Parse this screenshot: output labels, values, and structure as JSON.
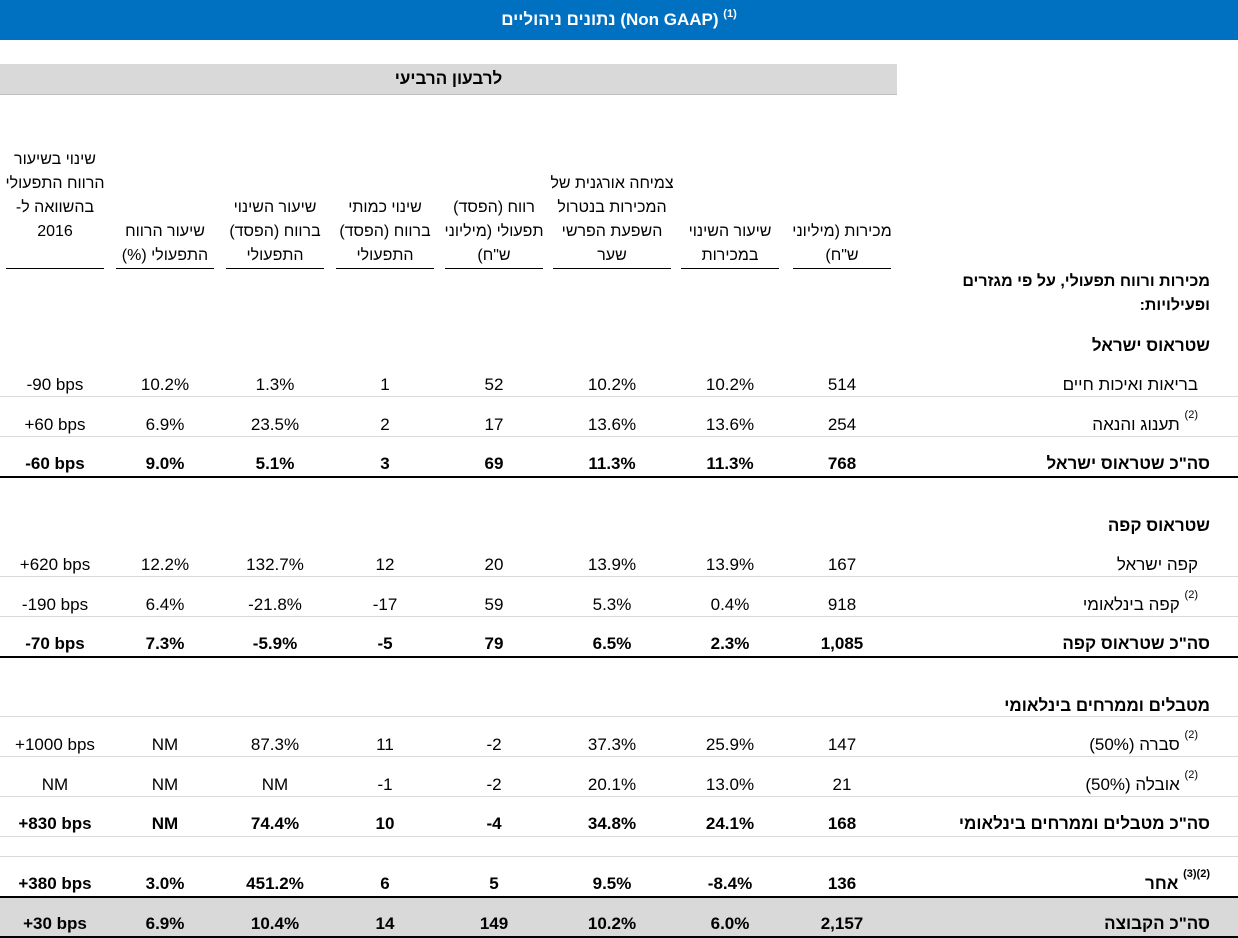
{
  "title": {
    "text": "נתונים ניהוליים (Non GAAP)",
    "footnote": "(1)"
  },
  "period": "לרבעון הרביעי",
  "section_intro": "מכירות ורווח תפעולי, על פי מגזרים ופעילויות:",
  "columns": [
    "מכירות (מיליוני ש\"ח)",
    "שיעור השינוי במכירות",
    "צמיחה אורגנית של המכירות בנטרול השפעת הפרשי שער",
    "רווח (הפסד) תפעולי (מיליוני ש\"ח)",
    "שינוי כמותי ברווח (הפסד) התפעולי",
    "שיעור השינוי ברווח (הפסד) התפעולי",
    "שיעור הרווח התפעולי (%)",
    "שינוי בשיעור הרווח התפעולי בהשוואה ל- 2016"
  ],
  "sections": [
    {
      "heading": "שטראוס ישראל"
    },
    {
      "heading": "שטראוס קפה"
    },
    {
      "heading": "מטבלים וממרחים בינלאומי"
    }
  ],
  "rows": [
    {
      "label": "בריאות ואיכות חיים",
      "fn": "",
      "values": [
        "514",
        "10.2%",
        "10.2%",
        "52",
        "1",
        "1.3%",
        "10.2%",
        "-90 bps"
      ]
    },
    {
      "label": "תענוג והנאה",
      "fn": "(2)",
      "values": [
        "254",
        "13.6%",
        "13.6%",
        "17",
        "2",
        "23.5%",
        "6.9%",
        "+60 bps"
      ]
    },
    {
      "label": "סה\"כ שטראוס ישראל",
      "fn": "",
      "values": [
        "768",
        "11.3%",
        "11.3%",
        "69",
        "3",
        "5.1%",
        "9.0%",
        "-60 bps"
      ]
    },
    {
      "label": "קפה ישראל",
      "fn": "",
      "values": [
        "167",
        "13.9%",
        "13.9%",
        "20",
        "12",
        "132.7%",
        "12.2%",
        "+620 bps"
      ]
    },
    {
      "label": "קפה בינלאומי",
      "fn": "(2)",
      "values": [
        "918",
        "0.4%",
        "5.3%",
        "59",
        "-17",
        "-21.8%",
        "6.4%",
        "-190 bps"
      ]
    },
    {
      "label": "סה\"כ שטראוס קפה",
      "fn": "",
      "values": [
        "1,085",
        "2.3%",
        "6.5%",
        "79",
        "-5",
        "-5.9%",
        "7.3%",
        "-70 bps"
      ]
    },
    {
      "label": "סברה (50%)",
      "fn": "(2)",
      "values": [
        "147",
        "25.9%",
        "37.3%",
        "-2",
        "11",
        "87.3%",
        "NM",
        "+1000 bps"
      ]
    },
    {
      "label": "אובלה (50%)",
      "fn": "(2)",
      "values": [
        "21",
        "13.0%",
        "20.1%",
        "-2",
        "-1",
        "NM",
        "NM",
        "NM"
      ]
    },
    {
      "label": "סה\"כ מטבלים וממרחים בינלאומי",
      "fn": "",
      "values": [
        "168",
        "24.1%",
        "34.8%",
        "-4",
        "10",
        "74.4%",
        "NM",
        "+830 bps"
      ]
    },
    {
      "label": "אחר",
      "fn": "(2)(3)",
      "values": [
        "136",
        "-8.4%",
        "9.5%",
        "5",
        "6",
        "451.2%",
        "3.0%",
        "+380 bps"
      ]
    },
    {
      "label": "סה\"כ הקבוצה",
      "fn": "",
      "values": [
        "2,157",
        "6.0%",
        "10.2%",
        "149",
        "14",
        "10.4%",
        "6.9%",
        "+30 bps"
      ]
    }
  ]
}
